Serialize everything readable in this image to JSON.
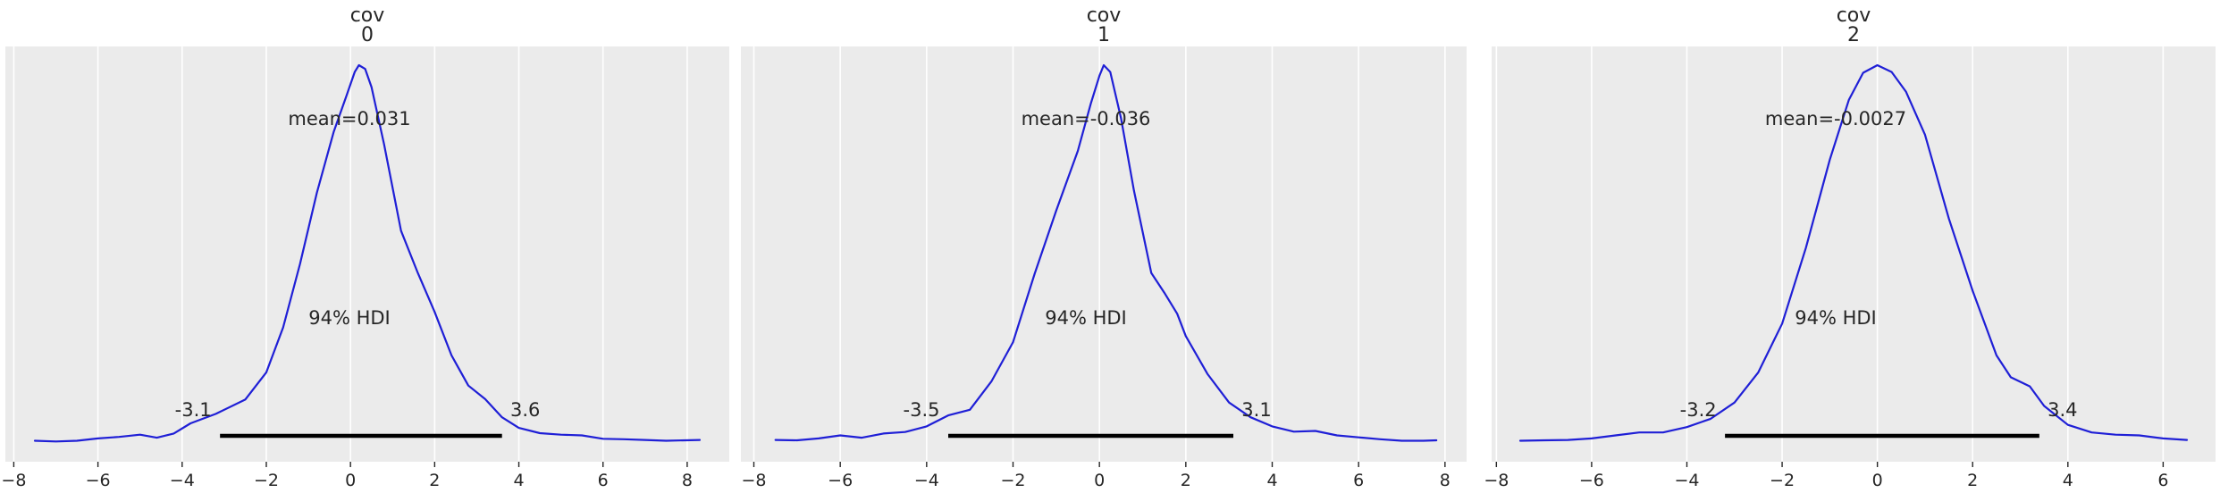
{
  "chart_data": [
    {
      "type": "density",
      "title_line1": "cov",
      "title_line2": "0",
      "xlim": [
        -8.2,
        9.0
      ],
      "xticks": [
        -8,
        -6,
        -4,
        -2,
        0,
        2,
        4,
        6,
        8
      ],
      "xtick_labels": [
        "−8",
        "−6",
        "−4",
        "−2",
        "0",
        "2",
        "4",
        "6",
        "8"
      ],
      "mean_label": "mean=0.031",
      "hdi_label": "94% HDI",
      "hdi": [
        -3.1,
        3.6
      ],
      "hdi_low_label": "-3.1",
      "hdi_high_label": "3.6",
      "grid": true,
      "line_color": "#1f1fd6",
      "density": [
        [
          -7.5,
          0.006
        ],
        [
          -7.0,
          0.004
        ],
        [
          -6.5,
          0.006
        ],
        [
          -6.0,
          0.012
        ],
        [
          -5.5,
          0.016
        ],
        [
          -5.0,
          0.022
        ],
        [
          -4.6,
          0.014
        ],
        [
          -4.2,
          0.025
        ],
        [
          -3.8,
          0.052
        ],
        [
          -3.2,
          0.077
        ],
        [
          -2.5,
          0.115
        ],
        [
          -2.0,
          0.187
        ],
        [
          -1.6,
          0.306
        ],
        [
          -1.2,
          0.474
        ],
        [
          -0.8,
          0.662
        ],
        [
          -0.4,
          0.823
        ],
        [
          -0.1,
          0.918
        ],
        [
          0.1,
          0.982
        ],
        [
          0.2,
          1.0
        ],
        [
          0.35,
          0.99
        ],
        [
          0.5,
          0.942
        ],
        [
          0.8,
          0.79
        ],
        [
          1.2,
          0.562
        ],
        [
          1.6,
          0.45
        ],
        [
          2.0,
          0.347
        ],
        [
          2.4,
          0.232
        ],
        [
          2.8,
          0.152
        ],
        [
          3.2,
          0.116
        ],
        [
          3.6,
          0.068
        ],
        [
          4.0,
          0.04
        ],
        [
          4.5,
          0.026
        ],
        [
          5.0,
          0.022
        ],
        [
          5.5,
          0.02
        ],
        [
          6.0,
          0.011
        ],
        [
          6.5,
          0.01
        ],
        [
          7.0,
          0.008
        ],
        [
          7.5,
          0.006
        ],
        [
          8.3,
          0.008
        ]
      ]
    },
    {
      "type": "density",
      "title_line1": "cov",
      "title_line2": "1",
      "xlim": [
        -8.3,
        8.5
      ],
      "xticks": [
        -8,
        -6,
        -4,
        -2,
        0,
        2,
        4,
        6,
        8
      ],
      "xtick_labels": [
        "−8",
        "−6",
        "−4",
        "−2",
        "0",
        "2",
        "4",
        "6",
        "8"
      ],
      "mean_label": "mean=-0.036",
      "hdi_label": "94% HDI",
      "hdi": [
        -3.5,
        3.1
      ],
      "hdi_low_label": "-3.5",
      "hdi_high_label": "3.1",
      "grid": true,
      "line_color": "#1f1fd6",
      "density": [
        [
          -7.5,
          0.008
        ],
        [
          -7.0,
          0.007
        ],
        [
          -6.5,
          0.012
        ],
        [
          -6.0,
          0.02
        ],
        [
          -5.5,
          0.014
        ],
        [
          -5.0,
          0.025
        ],
        [
          -4.5,
          0.029
        ],
        [
          -4.0,
          0.044
        ],
        [
          -3.5,
          0.073
        ],
        [
          -3.0,
          0.088
        ],
        [
          -2.5,
          0.163
        ],
        [
          -2.0,
          0.267
        ],
        [
          -1.5,
          0.448
        ],
        [
          -1.0,
          0.615
        ],
        [
          -0.5,
          0.773
        ],
        [
          -0.2,
          0.898
        ],
        [
          0.0,
          0.972
        ],
        [
          0.1,
          1.0
        ],
        [
          0.25,
          0.982
        ],
        [
          0.5,
          0.86
        ],
        [
          0.8,
          0.668
        ],
        [
          1.2,
          0.45
        ],
        [
          1.5,
          0.398
        ],
        [
          1.8,
          0.342
        ],
        [
          2.0,
          0.283
        ],
        [
          2.5,
          0.183
        ],
        [
          3.0,
          0.107
        ],
        [
          3.5,
          0.068
        ],
        [
          4.0,
          0.044
        ],
        [
          4.5,
          0.03
        ],
        [
          5.0,
          0.032
        ],
        [
          5.5,
          0.02
        ],
        [
          6.0,
          0.015
        ],
        [
          6.5,
          0.01
        ],
        [
          7.0,
          0.006
        ],
        [
          7.5,
          0.006
        ],
        [
          7.8,
          0.007
        ]
      ]
    },
    {
      "type": "density",
      "title_line1": "cov",
      "title_line2": "2",
      "xlim": [
        -8.1,
        7.1
      ],
      "xticks": [
        -8,
        -6,
        -4,
        -2,
        0,
        2,
        4,
        6
      ],
      "xtick_labels": [
        "−8",
        "−6",
        "−4",
        "−2",
        "0",
        "2",
        "4",
        "6"
      ],
      "mean_label": "mean=-0.0027",
      "hdi_label": "94% HDI",
      "hdi": [
        -3.2,
        3.4
      ],
      "hdi_low_label": "-3.2",
      "hdi_high_label": "3.4",
      "grid": true,
      "line_color": "#1f1fd6",
      "density": [
        [
          -7.5,
          0.006
        ],
        [
          -7.0,
          0.007
        ],
        [
          -6.5,
          0.008
        ],
        [
          -6.0,
          0.012
        ],
        [
          -5.5,
          0.02
        ],
        [
          -5.0,
          0.028
        ],
        [
          -4.5,
          0.028
        ],
        [
          -4.0,
          0.042
        ],
        [
          -3.5,
          0.064
        ],
        [
          -3.0,
          0.107
        ],
        [
          -2.5,
          0.187
        ],
        [
          -2.0,
          0.316
        ],
        [
          -1.5,
          0.517
        ],
        [
          -1.0,
          0.75
        ],
        [
          -0.6,
          0.908
        ],
        [
          -0.3,
          0.98
        ],
        [
          0.0,
          1.0
        ],
        [
          0.3,
          0.982
        ],
        [
          0.6,
          0.93
        ],
        [
          1.0,
          0.816
        ],
        [
          1.5,
          0.594
        ],
        [
          2.0,
          0.403
        ],
        [
          2.5,
          0.232
        ],
        [
          2.8,
          0.174
        ],
        [
          3.2,
          0.15
        ],
        [
          3.5,
          0.098
        ],
        [
          4.0,
          0.048
        ],
        [
          4.5,
          0.028
        ],
        [
          5.0,
          0.022
        ],
        [
          5.5,
          0.02
        ],
        [
          6.0,
          0.012
        ],
        [
          6.5,
          0.008
        ]
      ]
    }
  ]
}
